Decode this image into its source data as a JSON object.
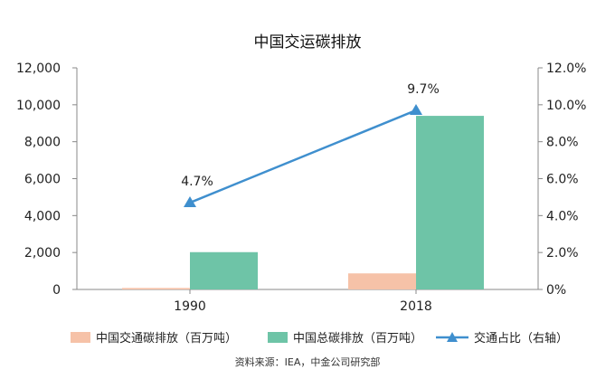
{
  "chart_data": {
    "type": "bar",
    "title": "中国交运碳排放",
    "categories": [
      "1990",
      "2018"
    ],
    "series": [
      {
        "name": "中国交通碳排放（百万吨）",
        "kind": "bar",
        "axis": "left",
        "color": "#f6c2a8",
        "values": [
          80,
          870
        ]
      },
      {
        "name": "中国总碳排放（百万吨）",
        "kind": "bar",
        "axis": "left",
        "color": "#6ec4a7",
        "values": [
          2020,
          9400
        ]
      },
      {
        "name": "交通占比（右轴）",
        "kind": "line",
        "axis": "right",
        "color": "#3f8fce",
        "values": [
          4.7,
          9.7
        ],
        "labels": [
          "4.7%",
          "9.7%"
        ]
      }
    ],
    "y_left": {
      "min": 0,
      "max": 12000,
      "ticks": [
        "0",
        "2,000",
        "4,000",
        "6,000",
        "8,000",
        "10,000",
        "12,000"
      ]
    },
    "y_right": {
      "min": 0,
      "max": 12,
      "ticks": [
        "0%",
        "2.0%",
        "4.0%",
        "6.0%",
        "8.0%",
        "10.0%",
        "12.0%"
      ]
    },
    "legend_position": "bottom",
    "grid": false
  },
  "source": "资料来源：IEA，中金公司研究部"
}
